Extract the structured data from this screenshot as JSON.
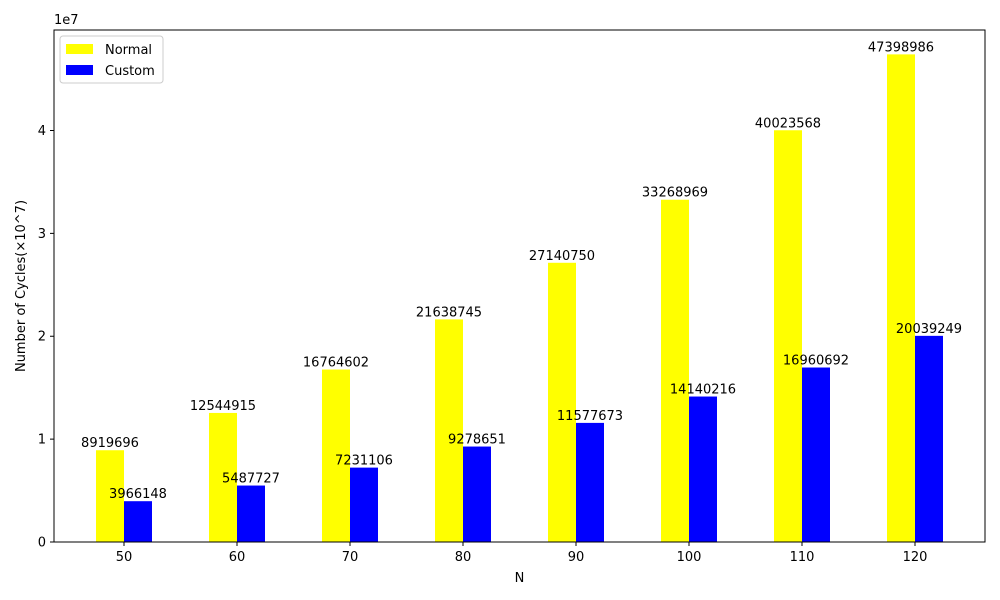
{
  "chart_data": {
    "type": "bar",
    "title": "",
    "xlabel": "N",
    "ylabel": "Number of Cycles(×10^7)",
    "y_offset_text": "1e7",
    "categories": [
      "50",
      "60",
      "70",
      "80",
      "90",
      "100",
      "110",
      "120"
    ],
    "series": [
      {
        "name": "Normal",
        "color": "#ffff00",
        "values": [
          8919696,
          12544915,
          16764602,
          21638745,
          27140750,
          33268969,
          40023568,
          47398986
        ]
      },
      {
        "name": "Custom",
        "color": "#0000ff",
        "values": [
          3966148,
          5487727,
          7231106,
          9278651,
          11577673,
          14140216,
          16960692,
          20039249
        ]
      }
    ],
    "ylim": [
      0,
      49768935
    ],
    "yticks": [
      0,
      10000000,
      20000000,
      30000000,
      40000000
    ],
    "ytick_labels": [
      "0",
      "1",
      "2",
      "3",
      "4"
    ],
    "grid": false,
    "legend_position": "upper left"
  }
}
